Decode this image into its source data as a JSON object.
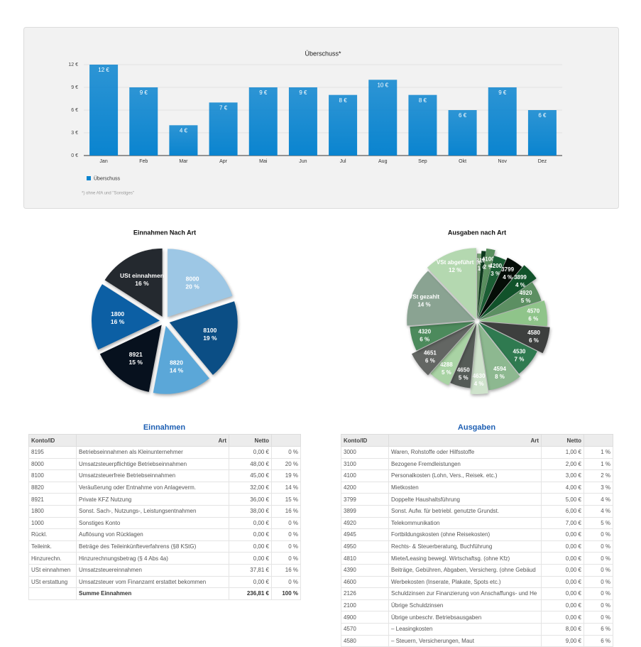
{
  "chart_data": [
    {
      "type": "bar",
      "title": "Überschuss*",
      "footnote": "*) ohne AfA und \"Sonstiges\"",
      "categories": [
        "Jan",
        "Feb",
        "Mar",
        "Apr",
        "Mai",
        "Jun",
        "Jul",
        "Aug",
        "Sep",
        "Okt",
        "Nov",
        "Dez"
      ],
      "series": [
        {
          "name": "Überschuss",
          "color": "#0a84cf",
          "values": [
            12,
            9,
            4,
            7,
            9,
            9,
            8,
            10,
            8,
            6,
            9,
            6
          ],
          "value_labels": [
            "12 €",
            "9 €",
            "4 €",
            "7 €",
            "9 €",
            "9 €",
            "8 €",
            "10 €",
            "8 €",
            "6 €",
            "9 €",
            "6 €"
          ]
        }
      ],
      "ylim": [
        0,
        12
      ],
      "yticks": [
        {
          "value": 0,
          "label": "0 €"
        },
        {
          "value": 3,
          "label": "3 €"
        },
        {
          "value": 6,
          "label": "6 €"
        },
        {
          "value": 9,
          "label": "9 €"
        },
        {
          "value": 12,
          "label": "12 €"
        }
      ],
      "grid": true
    },
    {
      "type": "pie",
      "title": "Einnahmen Nach Art",
      "categories": [
        "8000",
        "8100",
        "8820",
        "8921",
        "1800",
        "USt einnahmen"
      ],
      "values": [
        20,
        19,
        14,
        15,
        16,
        16
      ],
      "value_labels": [
        "20 %",
        "19 %",
        "14 %",
        "15 %",
        "16 %",
        "16 %"
      ],
      "colors": [
        "#9dc7e5",
        "#0b4e85",
        "#5ba7d8",
        "#07111e",
        "#0c5fa4",
        "#24292f"
      ]
    },
    {
      "type": "pie",
      "title": "Ausgaben nach Art",
      "categories": [
        "3000",
        "3100",
        "4100",
        "4200",
        "3799",
        "3899",
        "4920",
        "4570",
        "4580",
        "4530",
        "4594",
        "4630",
        "4650",
        "4288",
        "4651",
        "4320",
        "VSt gezahlt",
        "VSt abgeführt"
      ],
      "values": [
        1,
        1,
        2,
        3,
        4,
        4,
        5,
        6,
        6,
        7,
        8,
        4,
        5,
        5,
        6,
        6,
        14,
        12
      ],
      "value_labels": [
        "1 %",
        "1 %",
        "2 %",
        "3 %",
        "4 %",
        "4 %",
        "5 %",
        "6 %",
        "6 %",
        "7 %",
        "8 %",
        "4 %",
        "5 %",
        "5 %",
        "6 %",
        "6 %",
        "14 %",
        "12 %"
      ],
      "colors": [
        "#7da97a",
        "#0e3a1e",
        "#5a8f5f",
        "#1b5e34",
        "#050d07",
        "#11522a",
        "#5c8f62",
        "#8fc48a",
        "#3d3f3e",
        "#2f7a50",
        "#8db890",
        "#cfe3cc",
        "#555b57",
        "#a9d3a4",
        "#636663",
        "#4c8a5c",
        "#8aa392",
        "#b4d8b0"
      ]
    }
  ],
  "tables": [
    {
      "title": "Einnahmen",
      "columns": [
        "Konto/ID",
        "Art",
        "Netto"
      ],
      "rows": [
        [
          "8195",
          "Betriebseinnahmen als Kleinunternehmer",
          "0,00 €",
          "0 %"
        ],
        [
          "8000",
          "Umsatzsteuerpflichtige Betriebseinnahmen",
          "48,00 €",
          "20 %"
        ],
        [
          "8100",
          "Umsatzsteuerfreie Betriebseinnahmen",
          "45,00 €",
          "19 %"
        ],
        [
          "8820",
          "Veräußerung oder Entnahme von Anlageverm.",
          "32,00 €",
          "14 %"
        ],
        [
          "8921",
          "Private KFZ Nutzung",
          "36,00 €",
          "15 %"
        ],
        [
          "1800",
          "Sonst. Sach-, Nutzungs-, Leistungsentnahmen",
          "38,00 €",
          "16 %"
        ],
        [
          "1000",
          "Sonstiges Konto",
          "0,00 €",
          "0 %"
        ],
        [
          "Rückl.",
          "Auflösung von Rücklagen",
          "0,00 €",
          "0 %"
        ],
        [
          "Teileink.",
          "Beträge des Teileinkünfteverfahrens (§8 KStG)",
          "0,00 €",
          "0 %"
        ],
        [
          "Hinzurechn.",
          "Hinzurechnungsbetrag (§ 4 Abs 4a)",
          "0,00 €",
          "0 %"
        ],
        [
          "USt einnahmen",
          "Umsatzsteuereinnahmen",
          "37,81 €",
          "16 %"
        ],
        [
          "USt erstattung",
          "Umsatzsteuer vom Finanzamt erstattet bekommen",
          "0,00 €",
          "0 %"
        ]
      ],
      "footer": [
        "Summe Einnahmen",
        "236,81 €",
        "100 %"
      ]
    },
    {
      "title": "Ausgaben",
      "columns": [
        "Konto/ID",
        "Art",
        "Netto"
      ],
      "rows": [
        [
          "3000",
          "Waren, Rohstoffe oder Hilfsstoffe",
          "1,00 €",
          "1 %"
        ],
        [
          "3100",
          "Bezogene Fremdleistungen",
          "2,00 €",
          "1 %"
        ],
        [
          "4100",
          "Personalkosten (Lohn, Vers., Reisek. etc.)",
          "3,00 €",
          "2 %"
        ],
        [
          "4200",
          "Mietkosten",
          "4,00 €",
          "3 %"
        ],
        [
          "3799",
          "Doppelte Haushaltsführung",
          "5,00 €",
          "4 %"
        ],
        [
          "3899",
          "Sonst. Aufw. für betriebl. genutzte Grundst.",
          "6,00 €",
          "4 %"
        ],
        [
          "4920",
          "Telekommunikation",
          "7,00 €",
          "5 %"
        ],
        [
          "4945",
          "Fortbildungskosten (ohne Reisekosten)",
          "0,00 €",
          "0 %"
        ],
        [
          "4950",
          "Rechts- & Steuerberatung, Buchführung",
          "0,00 €",
          "0 %"
        ],
        [
          "4810",
          "Miete/Leasing bewegl. Wirtschaftsg. (ohne Kfz)",
          "0,00 €",
          "0 %"
        ],
        [
          "4390",
          "Beiträge, Gebühren, Abgaben, Versicherg. (ohne Gebäud",
          "0,00 €",
          "0 %"
        ],
        [
          "4600",
          "Werbekosten (Inserate, Plakate, Spots etc.)",
          "0,00 €",
          "0 %"
        ],
        [
          "2126",
          "Schuldzinsen zur Finanzierung von Anschaffungs- und He",
          "0,00 €",
          "0 %"
        ],
        [
          "2100",
          "Übrige Schuldzinsen",
          "0,00 €",
          "0 %"
        ],
        [
          "4900",
          "Übrige unbeschr. Betriebsausgaben",
          "0,00 €",
          "0 %"
        ],
        [
          "4570",
          "–  Leasingkosten",
          "8,00 €",
          "6 %"
        ],
        [
          "4580",
          "–  Steuern, Versicherungen, Maut",
          "9,00 €",
          "6 %"
        ]
      ]
    }
  ]
}
